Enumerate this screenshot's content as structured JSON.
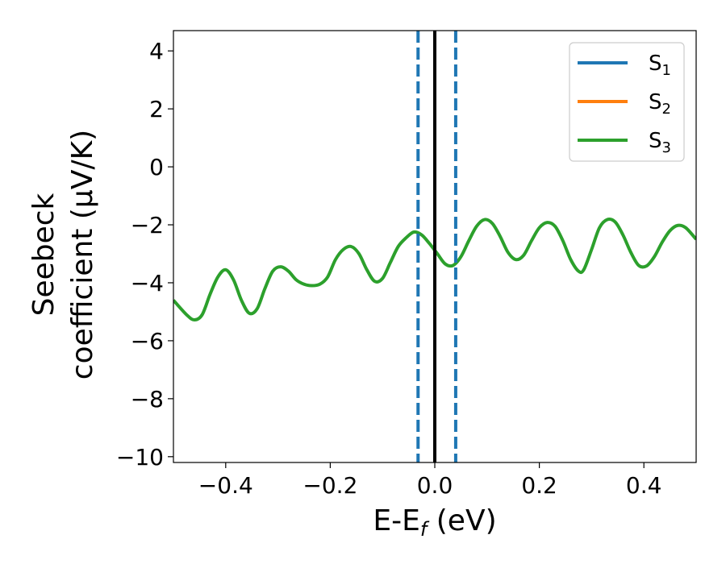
{
  "chart_data": {
    "type": "line",
    "xlabel": {
      "main": "E-E",
      "sub": "f",
      "suffix": " (eV)"
    },
    "ylabel": {
      "line1": "Seebeck",
      "line2": "coefficient  (μV/K)"
    },
    "xlim": [
      -0.5,
      0.5
    ],
    "ylim": [
      -10.2,
      4.7
    ],
    "xticks": [
      -0.4,
      -0.2,
      0.0,
      0.2,
      0.4
    ],
    "xtick_labels": [
      "−0.4",
      "−0.2",
      "0.0",
      "0.2",
      "0.4"
    ],
    "yticks": [
      -10,
      -8,
      -6,
      -4,
      -2,
      0,
      2,
      4
    ],
    "ytick_labels": [
      "−10",
      "−8",
      "−6",
      "−4",
      "−2",
      "0",
      "2",
      "4"
    ],
    "grid": false,
    "legend_position": "top-right",
    "vlines": [
      {
        "x": -0.032,
        "color": "#1f77b4",
        "style": "dashed"
      },
      {
        "x": 0.0,
        "color": "#000000",
        "style": "solid"
      },
      {
        "x": 0.04,
        "color": "#1f77b4",
        "style": "dashed"
      }
    ],
    "x": [
      -0.5,
      -0.475,
      -0.46,
      -0.445,
      -0.43,
      -0.415,
      -0.4,
      -0.385,
      -0.37,
      -0.355,
      -0.34,
      -0.325,
      -0.31,
      -0.295,
      -0.28,
      -0.265,
      -0.25,
      -0.235,
      -0.22,
      -0.205,
      -0.19,
      -0.175,
      -0.16,
      -0.145,
      -0.13,
      -0.115,
      -0.1,
      -0.085,
      -0.07,
      -0.055,
      -0.04,
      -0.025,
      -0.01,
      0.005,
      0.02,
      0.035,
      0.05,
      0.065,
      0.08,
      0.095,
      0.11,
      0.125,
      0.14,
      0.155,
      0.17,
      0.185,
      0.2,
      0.215,
      0.23,
      0.245,
      0.26,
      0.275,
      0.285,
      0.3,
      0.315,
      0.33,
      0.345,
      0.36,
      0.375,
      0.39,
      0.405,
      0.42,
      0.435,
      0.45,
      0.465,
      0.48,
      0.5
    ],
    "series": [
      {
        "name": "S1",
        "color": "#1f77b4",
        "values": null
      },
      {
        "name": "S2",
        "color": "#ff7f0e",
        "values": null
      },
      {
        "name": "S3",
        "color": "#2ca02c",
        "values": [
          -4.6,
          -5.1,
          -5.28,
          -5.1,
          -4.4,
          -3.8,
          -3.55,
          -3.9,
          -4.6,
          -5.05,
          -4.9,
          -4.2,
          -3.6,
          -3.45,
          -3.6,
          -3.9,
          -4.05,
          -4.1,
          -4.05,
          -3.8,
          -3.2,
          -2.85,
          -2.75,
          -3.0,
          -3.55,
          -3.95,
          -3.85,
          -3.3,
          -2.75,
          -2.45,
          -2.25,
          -2.35,
          -2.65,
          -3.0,
          -3.35,
          -3.4,
          -3.1,
          -2.55,
          -2.05,
          -1.82,
          -1.95,
          -2.4,
          -2.95,
          -3.2,
          -3.05,
          -2.55,
          -2.1,
          -1.92,
          -2.05,
          -2.55,
          -3.2,
          -3.6,
          -3.55,
          -2.85,
          -2.1,
          -1.82,
          -1.9,
          -2.35,
          -2.95,
          -3.4,
          -3.42,
          -3.1,
          -2.6,
          -2.2,
          -2.02,
          -2.1,
          -2.5
        ]
      }
    ],
    "legend": [
      {
        "base": "S",
        "sub": "1",
        "color": "#1f77b4"
      },
      {
        "base": "S",
        "sub": "2",
        "color": "#ff7f0e"
      },
      {
        "base": "S",
        "sub": "3",
        "color": "#2ca02c"
      }
    ]
  }
}
